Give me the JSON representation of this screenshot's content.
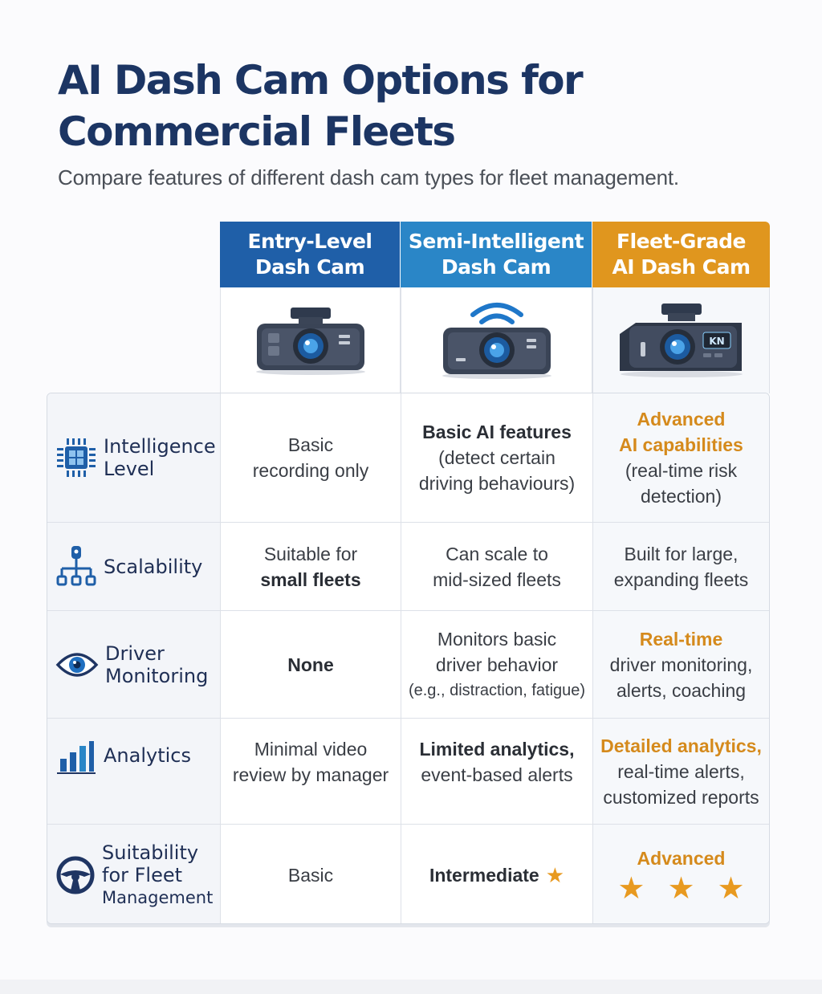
{
  "header": {
    "title_line1": "AI Dash Cam Options for",
    "title_line2": "Commercial Fleets",
    "subtitle": "Compare features of different dash cam types for fleet management."
  },
  "columns": [
    {
      "line1": "Entry-Level",
      "line2": "Dash Cam",
      "color": "#1f5fa8",
      "icon": "dash-cam-icon"
    },
    {
      "line1": "Semi-Intelligent",
      "line2": "Dash Cam",
      "color": "#2a86c7",
      "icon": "wifi-dash-cam-icon"
    },
    {
      "line1": "Fleet-Grade",
      "line2": "AI Dash Cam",
      "color": "#e0961e",
      "icon": "ai-dash-cam-icon",
      "badge": "KN"
    }
  ],
  "rows": {
    "intelligence": {
      "label1": "Intelligence",
      "label2": "Level",
      "entry": [
        "Basic",
        "recording only"
      ],
      "semi": [
        "Basic AI features",
        "(detect certain",
        "driving behaviours)"
      ],
      "fleet_highlight": [
        "Advanced",
        "AI capabilities"
      ],
      "fleet": [
        "(real-time risk",
        "detection)"
      ]
    },
    "scalability": {
      "label1": "Scalability",
      "entry": [
        "Suitable for"
      ],
      "entry_bold": "small fleets",
      "semi": [
        "Can scale to",
        "mid-sized fleets"
      ],
      "fleet": [
        "Built for large,",
        "expanding fleets"
      ]
    },
    "driver": {
      "label1": "Driver",
      "label2": "Monitoring",
      "entry": "None",
      "semi": [
        "Monitors basic",
        "driver behavior"
      ],
      "semi_small": "(e.g., distraction, fatigue)",
      "fleet_highlight": "Real-time",
      "fleet": [
        "driver monitoring,",
        "alerts, coaching"
      ]
    },
    "analytics": {
      "label1": "Analytics",
      "entry": [
        "Minimal video",
        "review by manager"
      ],
      "semi_bold": "Limited analytics,",
      "semi": "event-based alerts",
      "fleet_highlight": "Detailed analytics,",
      "fleet": [
        "real-time alerts,",
        "customized reports"
      ]
    },
    "suitability": {
      "label1": "Suitability",
      "label2": "for Fleet",
      "label3": "Management",
      "entry": "Basic",
      "semi": "Intermediate",
      "semi_stars": 1,
      "fleet": "Advanced",
      "fleet_stars": 3
    }
  }
}
